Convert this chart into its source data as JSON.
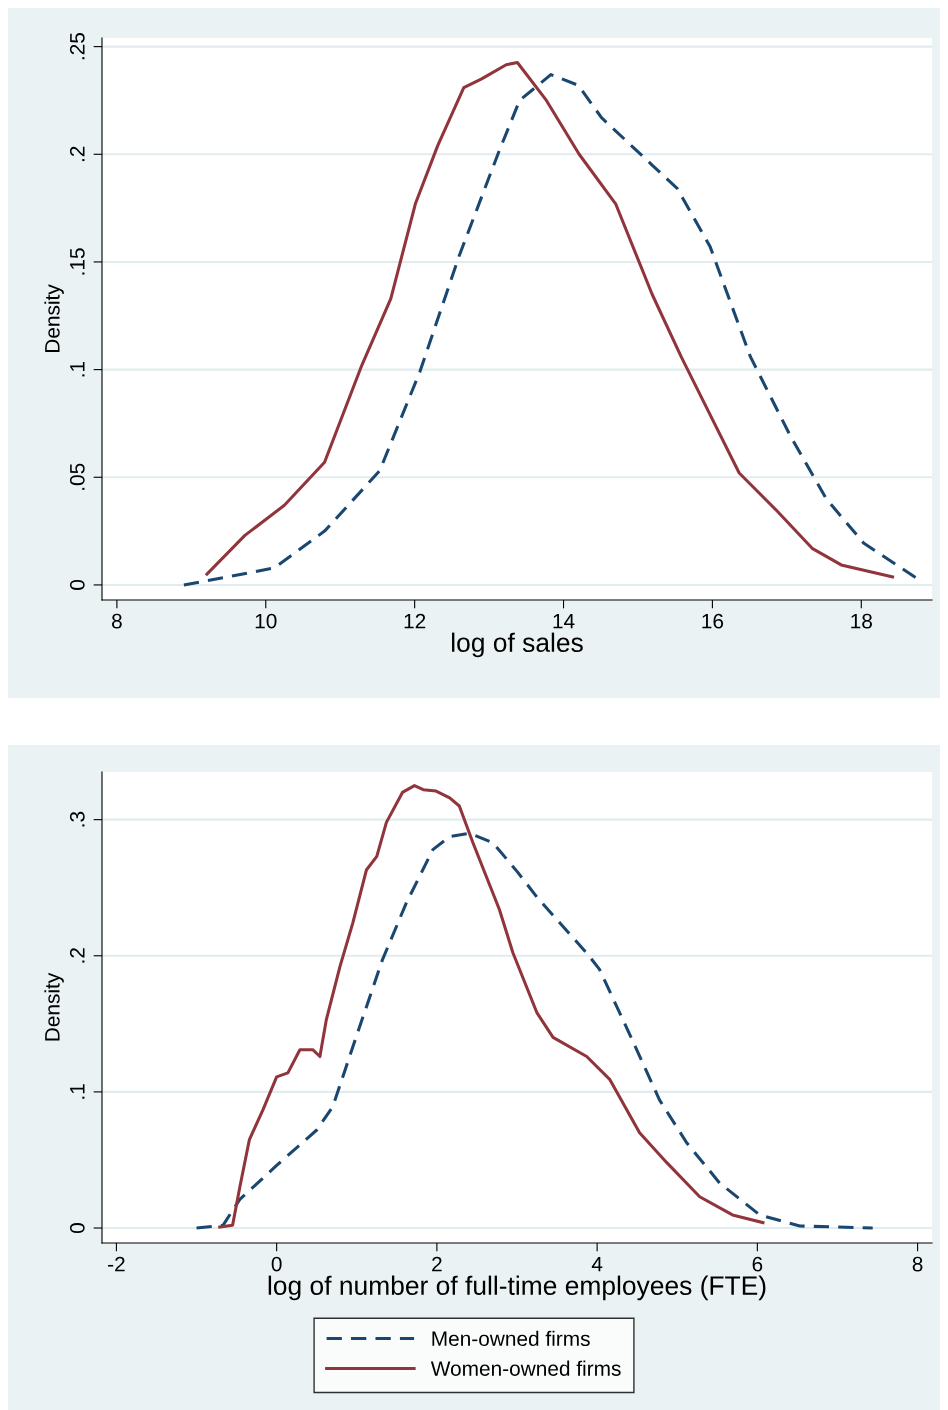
{
  "chart_data": [
    {
      "type": "line",
      "xlabel": "log of sales",
      "ylabel": "Density",
      "xlim": [
        7.8,
        18.95
      ],
      "ylim": [
        -0.007,
        0.254
      ],
      "xticks": [
        8,
        10,
        12,
        14,
        16,
        18
      ],
      "yticks": [
        0,
        {
          "value": 0.05,
          "label": ".05"
        },
        {
          "value": 0.1,
          "label": ".1"
        },
        {
          "value": 0.15,
          "label": ".15"
        },
        {
          "value": 0.2,
          "label": ".2"
        },
        {
          "value": 0.25,
          "label": ".25"
        }
      ],
      "grid": "y",
      "series": [
        {
          "color": "#1a476f",
          "line_style": "dashed",
          "x": [
            8.9,
            9.53,
            10.12,
            10.79,
            11.53,
            12.07,
            12.6,
            13.14,
            13.41,
            13.83,
            14.2,
            14.51,
            15.19,
            15.53,
            15.97,
            16.51,
            17.05,
            17.53,
            18.03,
            18.75
          ],
          "values": [
            0.0,
            0.004,
            0.008,
            0.025,
            0.053,
            0.099,
            0.153,
            0.202,
            0.225,
            0.237,
            0.232,
            0.217,
            0.195,
            0.184,
            0.157,
            0.106,
            0.069,
            0.04,
            0.0195,
            0.003
          ]
        },
        {
          "color": "#90353b",
          "line_style": "solid",
          "x": [
            9.21,
            9.72,
            10.25,
            10.79,
            11.29,
            11.68,
            12.01,
            12.31,
            12.66,
            12.9,
            13.23,
            13.38,
            13.77,
            14.21,
            14.7,
            15.19,
            15.58,
            15.97,
            16.36,
            16.85,
            17.34,
            17.73,
            18.42
          ],
          "values": [
            0.005,
            0.023,
            0.037,
            0.057,
            0.102,
            0.133,
            0.177,
            0.204,
            0.231,
            0.235,
            0.2416,
            0.2426,
            0.225,
            0.2,
            0.177,
            0.135,
            0.106,
            0.079,
            0.052,
            0.035,
            0.017,
            0.0093,
            0.0037
          ]
        }
      ]
    },
    {
      "type": "line",
      "xlabel": "log of number of full-time employees (FTE)",
      "ylabel": "Density",
      "xlim": [
        -2.18,
        8.18
      ],
      "ylim": [
        -0.011,
        0.335
      ],
      "xticks": [
        -2,
        0,
        2,
        4,
        6,
        8
      ],
      "yticks": [
        0,
        {
          "value": 0.1,
          "label": ".1"
        },
        {
          "value": 0.2,
          "label": ".2"
        },
        {
          "value": 0.3,
          "label": ".3"
        }
      ],
      "grid": "y",
      "legend": "bottom",
      "series": [
        {
          "name": "Men-owned firms",
          "color": "#1a476f",
          "line_style": "dashed",
          "x": [
            -1.0,
            -0.67,
            -0.46,
            0,
            0.5,
            0.7,
            0.95,
            1.32,
            1.62,
            1.95,
            2.16,
            2.41,
            2.7,
            3.0,
            3.25,
            3.87,
            4.03,
            4.44,
            4.78,
            5.12,
            5.53,
            6.03,
            6.53,
            7.44
          ],
          "values": [
            0.0,
            0.002,
            0.021,
            0.046,
            0.072,
            0.089,
            0.133,
            0.197,
            0.239,
            0.278,
            0.2875,
            0.29,
            0.283,
            0.262,
            0.243,
            0.202,
            0.19,
            0.138,
            0.094,
            0.0625,
            0.033,
            0.0096,
            0.0015,
            0.0
          ]
        },
        {
          "name": "Women-owned firms",
          "color": "#90353b",
          "line_style": "solid",
          "x": [
            -0.71,
            -0.55,
            -0.46,
            -0.34,
            -0.17,
            0,
            0.14,
            0.29,
            0.45,
            0.54,
            0.62,
            0.79,
            0.95,
            1.12,
            1.25,
            1.37,
            1.57,
            1.72,
            1.83,
            1.99,
            2.16,
            2.28,
            2.45,
            2.78,
            2.95,
            3.25,
            3.45,
            3.87,
            4.16,
            4.53,
            4.87,
            5.28,
            5.69,
            6.07
          ],
          "values": [
            0.0007,
            0.002,
            0.03,
            0.065,
            0.087,
            0.111,
            0.114,
            0.131,
            0.131,
            0.126,
            0.153,
            0.192,
            0.224,
            0.263,
            0.273,
            0.298,
            0.32,
            0.325,
            0.322,
            0.321,
            0.316,
            0.31,
            0.283,
            0.234,
            0.202,
            0.158,
            0.14,
            0.126,
            0.109,
            0.07,
            0.048,
            0.023,
            0.0096,
            0.004
          ]
        }
      ]
    }
  ]
}
